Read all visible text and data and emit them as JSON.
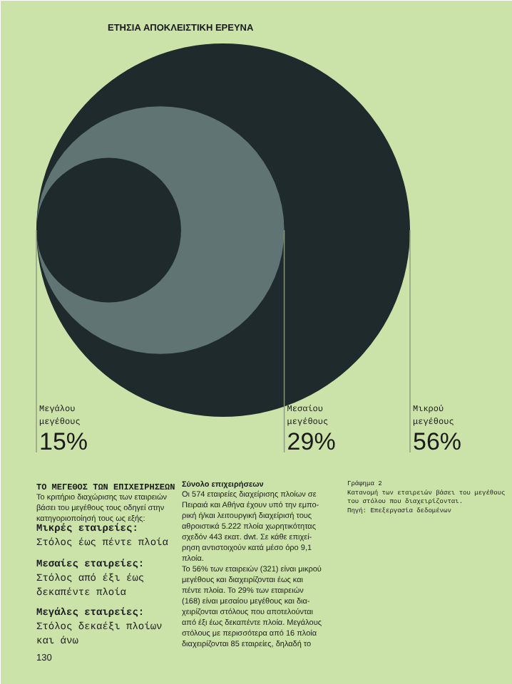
{
  "chart_data": {
    "type": "other",
    "title": "ΕΤΗΣΙΑ ΑΠΟΚΛΕΙΣΤΙΚΗ ΕΡΕΥΝΑ",
    "categories": [
      "Μεγάλου\nμεγέθους",
      "Μεσαίου\nμεγέθους",
      "Μικρού\nμεγέθους"
    ],
    "values": [
      15,
      29,
      56
    ],
    "value_labels": [
      "15%",
      "29%",
      "56%"
    ],
    "colors": [
      "#1f2a2c",
      "#5f7473",
      "#1f2a2c"
    ],
    "annotations": [
      "ΤΟ ΜΕΓΕΘΟΣ ΤΩΝ ΕΠΙΧΕΙΡΗΣΕΩΝ",
      "Το κριτήριο διαχώρισης των εταιρειών\nβάσει του μεγέθους τους οδηγεί στην\nκατηγοριοποίησή τους ως εξής:",
      "Μικρές εταιρείες:",
      "Στόλος έως πέντε πλοία",
      "Μεσαίες εταιρείες:",
      "Στόλος από έξι έως\nδεκαπέντε πλοία",
      "Μεγάλες εταιρείες:",
      "Στόλος δεκαέξι πλοίων\nκαι άνω",
      "Σύνολο επιχειρήσεων",
      "Οι 574 εταιρείες διαχείρισης πλοίων σε\nΠειραιά και Αθήνα έχουν υπό την εμπο-\nρική ή/και λειτουργική διαχείρισή τους\nαθροιστικά 5.222 πλοία χωρητικότητας\nσχεδόν 443 εκατ. dwt. Σε κάθε επιχεί-\nρηση αντιστοιχούν κατά μέσο όρο 9,1\nπλοία.\nΤο 56% των εταιρειών (321) είναι μικρού\nμεγέθους και διαχειρίζονται έως και\nπέντε πλοία. Το 29% των εταιρειών\n(168) είναι μεσαίου μεγέθους και δια-\nχειρίζονται στόλους που αποτελούνται\nαπό έξι έως δεκαπέντε πλοία. Μεγάλους\nστόλους με περισσότερα από 16 πλοία\nδιαχειρίζονται 85 εταιρείες, δηλαδή το",
      "Γράφημα 2\nΚατανομή των εταιρειών βάσει του μεγέθους\nτου στόλου που διαχειρίζονται.\nΠηγή: Επεξεργασία δεδομένων",
      "130"
    ]
  }
}
